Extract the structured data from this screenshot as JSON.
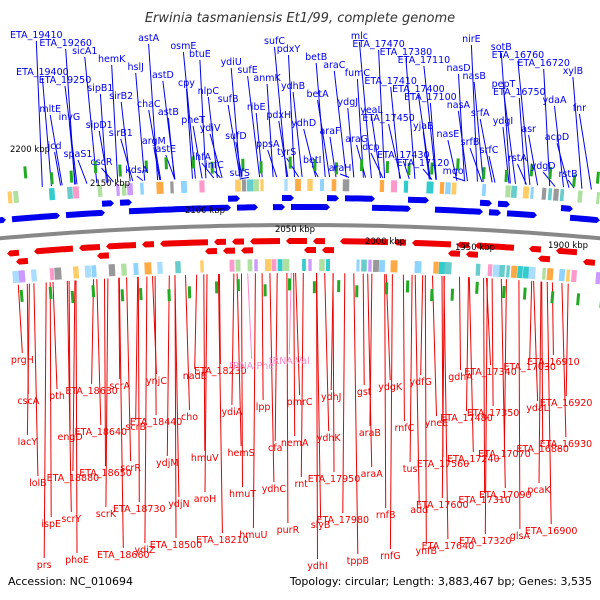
{
  "title": "Erwinia tasmaniensis Et1/99, complete genome",
  "footer": {
    "accession": "Accession: NC_010694",
    "summary": "Topology: circular; Length: 3,883,467 bp; Genes: 3,535"
  },
  "colors": {
    "forward": "#0000ee",
    "reverse": "#ee0000",
    "rna": "#ff88cc",
    "backbone": "#888888",
    "gc_marker": "#22aa22"
  },
  "ticks": [
    "2200 kbp",
    "2150 kbp",
    "2100 kbp",
    "2050 kbp",
    "2000 kbp",
    "1950 kbp",
    "1900 kbp"
  ],
  "top_genes": [
    "ETA_19410",
    "ETA_19400",
    "mltE",
    "icd",
    "ETA_19260",
    "ETA_19250",
    "invG",
    "spaS1",
    "sicA1",
    "sipB1",
    "sipD1",
    "cscR",
    "hemK",
    "sirB2",
    "sirB1",
    "kdsA",
    "hslJ",
    "chaC",
    "argM",
    "astA",
    "astD",
    "astB",
    "astE",
    "osmE",
    "cpy",
    "pheT",
    "ihfA",
    "btuE",
    "nlpC",
    "ydiV",
    "infC",
    "ydiU",
    "sufB",
    "sufD",
    "sufS",
    "sufE",
    "ribE",
    "ppsA",
    "sufC",
    "anmK",
    "pdxH",
    "tyrS",
    "pdxY",
    "ydhB",
    "ydhD",
    "betI",
    "betB",
    "betA",
    "araF",
    "araH",
    "araC",
    "ydgJ",
    "araG",
    "mlc",
    "fumC",
    "yeaL",
    "dcp",
    "ETA_17470",
    "ETA_17410",
    "ETA_17450",
    "ETA_17430",
    "ETA_17380",
    "ETA_17400",
    "yjaB",
    "ETA_17120",
    "ETA_17110",
    "ETA_17100",
    "nasE",
    "mqo",
    "nasD",
    "nasA",
    "srfB",
    "nirE",
    "nasB",
    "srfA",
    "srfC",
    "sotB",
    "pepT",
    "ydgI",
    "rstA",
    "ETA_16760",
    "ETA_16750",
    "asr",
    "ydgD",
    "ETA_16720",
    "ydaA",
    "acpD",
    "rstB",
    "xylB",
    "fnr"
  ],
  "bottom_genes": [
    "prgH",
    "cscA",
    "lacY",
    "lolB",
    "ispE",
    "prs",
    "pth",
    "engD",
    "ETA_18880",
    "scrY",
    "phoE",
    "ETA_18630",
    "ETA_18640",
    "ETA_18650",
    "scrK",
    "ETA_18660",
    "scrA",
    "scrB",
    "scrR",
    "ETA_18730",
    "ydiZ",
    "ynjC",
    "ETA_18440",
    "ydjM",
    "ydjN",
    "ETA_18500",
    "nadE",
    "cho",
    "hmuV",
    "aroH",
    "ETA_18210",
    "ETA_18230",
    "ydiA",
    "hemS",
    "hmuT",
    "hmuU",
    "tRNA-Phe",
    "lpp",
    "cfa",
    "ydhC",
    "purR",
    "tRNA-Val",
    "pmrC",
    "nemA",
    "rnt",
    "slyB",
    "ydhI",
    "ydhJ",
    "ydhK",
    "ETA_17950",
    "ETA_17980",
    "tppB",
    "gst",
    "araB",
    "araA",
    "rnfB",
    "rnfG",
    "ydgK",
    "rnfC",
    "tus",
    "add",
    "ynfB",
    "ydfG",
    "yneE",
    "ETA_17560",
    "ETA_17600",
    "ETA_17640",
    "gdhA",
    "ETA_17480",
    "ETA_17240",
    "ETA_17310",
    "ETA_17320",
    "ETA_17340",
    "ETA_17350",
    "ETA_17070",
    "ETA_17090",
    "glsA",
    "ETA_17030",
    "ydaL",
    "ETA_16880",
    "pcaK",
    "ETA_16900",
    "ETA_16910",
    "ETA_16920",
    "ETA_16930"
  ]
}
